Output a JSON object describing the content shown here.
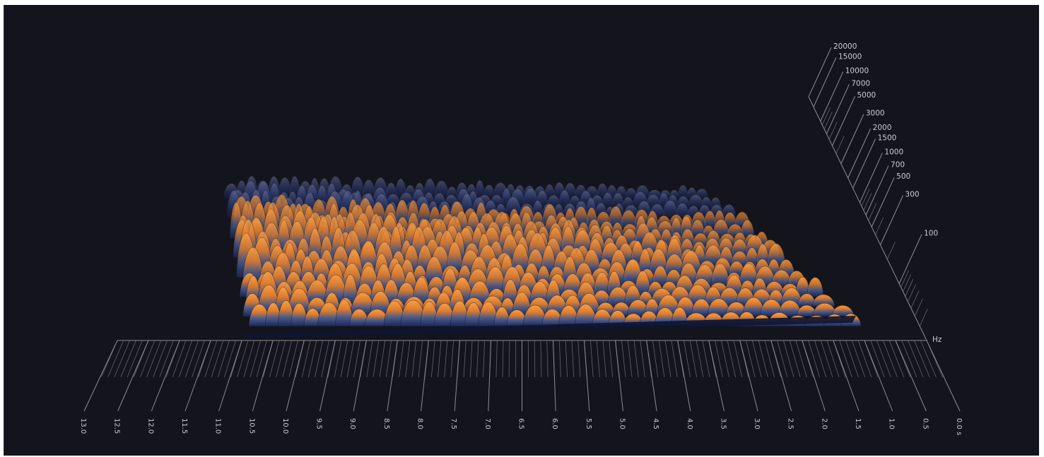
{
  "chart_data": {
    "type": "3d-spectrogram",
    "title": "",
    "x_axis": {
      "unit_label": "s",
      "range": [
        0.0,
        13.0
      ],
      "tick_labels": [
        "13.0",
        "12.5",
        "12.0",
        "11.5",
        "11.0",
        "10.5",
        "10.0",
        "9.5",
        "9.0",
        "8.5",
        "8.0",
        "7.5",
        "7.0",
        "6.5",
        "6.0",
        "5.5",
        "5.0",
        "4.5",
        "4.0",
        "3.5",
        "3.0",
        "2.5",
        "2.0",
        "1.5",
        "1.0",
        "0.5",
        "0.0"
      ],
      "direction": "reversed"
    },
    "y_axis": {
      "unit_label": "Hz",
      "scale": "log",
      "range": [
        20,
        20000
      ],
      "tick_values": [
        100,
        300,
        500,
        700,
        1000,
        1500,
        2000,
        3000,
        5000,
        7000,
        10000,
        15000,
        20000
      ],
      "tick_labels": [
        "100",
        "300",
        "500",
        "700",
        "1000",
        "1500",
        "2000",
        "3000",
        "5000",
        "7000",
        "10000",
        "15000",
        "20000"
      ]
    },
    "grid": true,
    "colors": {
      "background": "#14151c",
      "axis": "#8a8d96",
      "low": "#1b2a55",
      "mid": "#2e4a8c",
      "high": "#f58a2a"
    }
  }
}
